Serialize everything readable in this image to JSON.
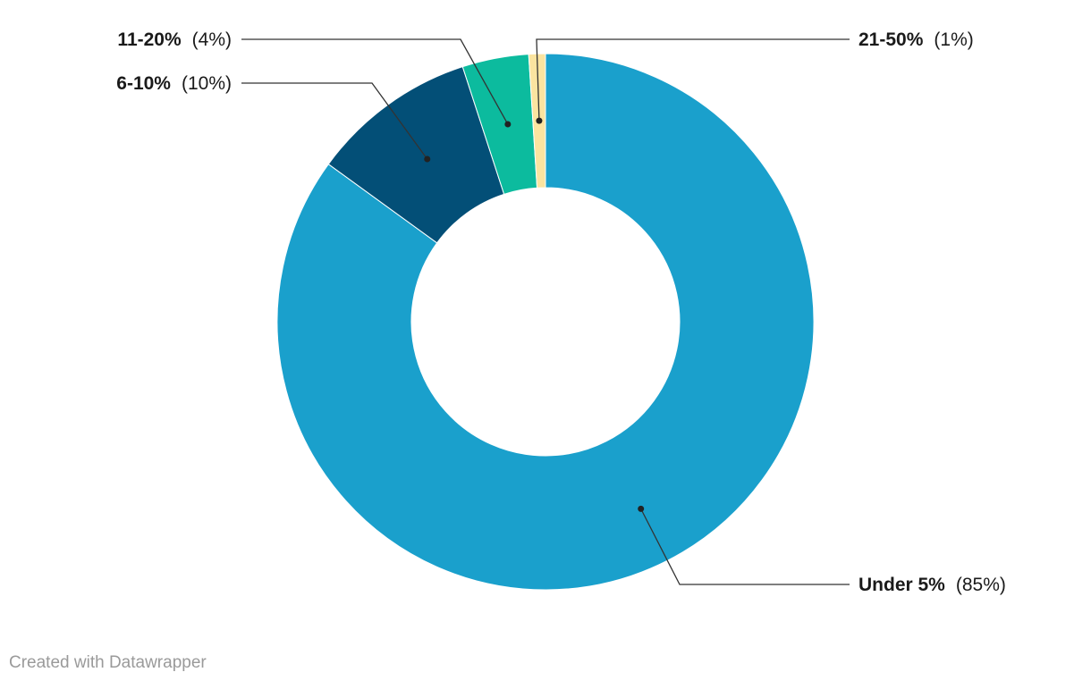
{
  "chart_data": {
    "type": "pie",
    "donut": true,
    "slices": [
      {
        "label": "Under 5%",
        "value": 85,
        "pct_text": "(85%)",
        "color": "#1aa0cc"
      },
      {
        "label": "6-10%",
        "value": 10,
        "pct_text": "(10%)",
        "color": "#034f77"
      },
      {
        "label": "11-20%",
        "value": 4,
        "pct_text": "(4%)",
        "color": "#0cbb9e"
      },
      {
        "label": "21-50%",
        "value": 1,
        "pct_text": "(1%)",
        "color": "#fbe4a0"
      }
    ]
  },
  "footer": {
    "credit": "Created with Datawrapper"
  }
}
